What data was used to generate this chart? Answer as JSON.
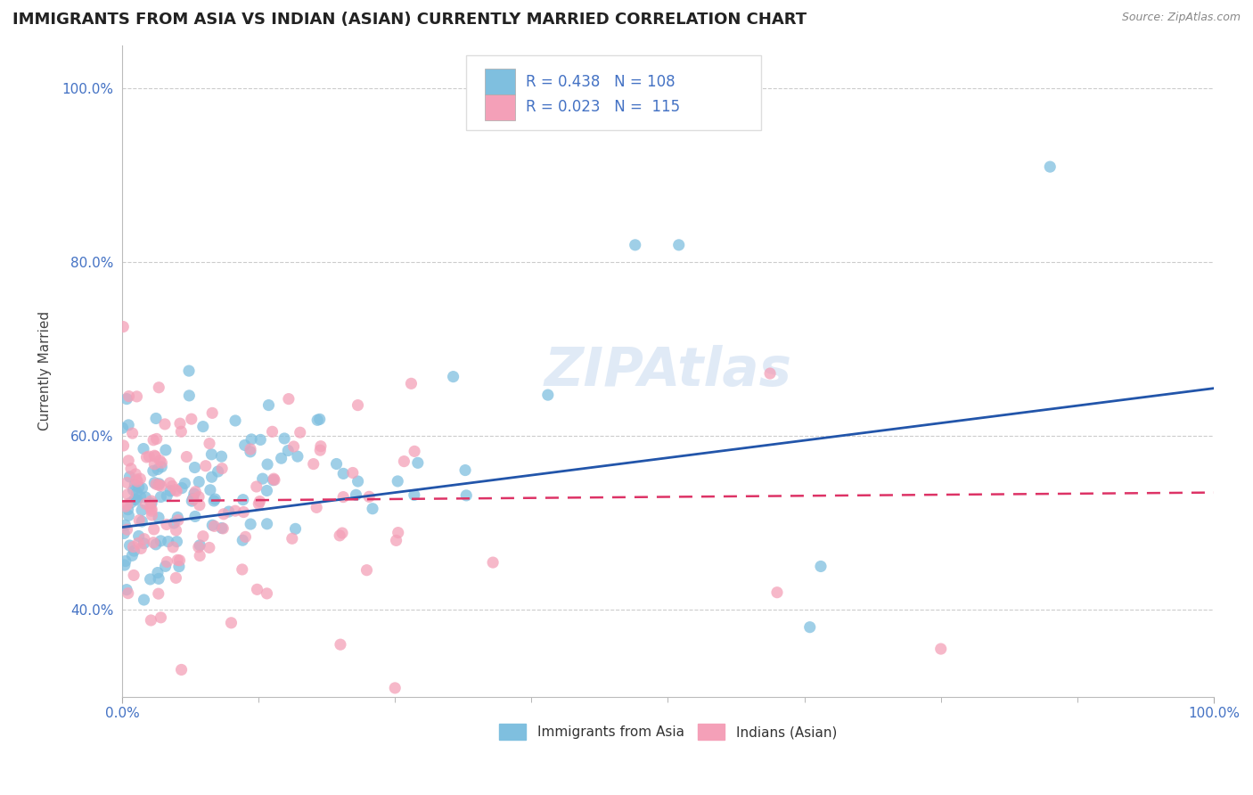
{
  "title": "IMMIGRANTS FROM ASIA VS INDIAN (ASIAN) CURRENTLY MARRIED CORRELATION CHART",
  "source": "Source: ZipAtlas.com",
  "ylabel": "Currently Married",
  "xlim": [
    0.0,
    1.0
  ],
  "ylim": [
    0.3,
    1.05
  ],
  "ytick_labels": [
    "40.0%",
    "60.0%",
    "80.0%",
    "100.0%"
  ],
  "ytick_vals": [
    0.4,
    0.6,
    0.8,
    1.0
  ],
  "xtick_labels": [
    "0.0%",
    "100.0%"
  ],
  "blue_R": 0.438,
  "blue_N": 108,
  "pink_R": 0.023,
  "pink_N": 115,
  "blue_color": "#7fbfdf",
  "pink_color": "#f4a0b8",
  "blue_line_color": "#2255aa",
  "pink_line_color": "#dd3366",
  "legend_labels": [
    "Immigrants from Asia",
    "Indians (Asian)"
  ],
  "tick_color": "#4472c4",
  "background_color": "#ffffff",
  "grid_color": "#cccccc",
  "blue_line_start_y": 0.495,
  "blue_line_end_y": 0.655,
  "pink_line_start_y": 0.525,
  "pink_line_end_y": 0.535
}
